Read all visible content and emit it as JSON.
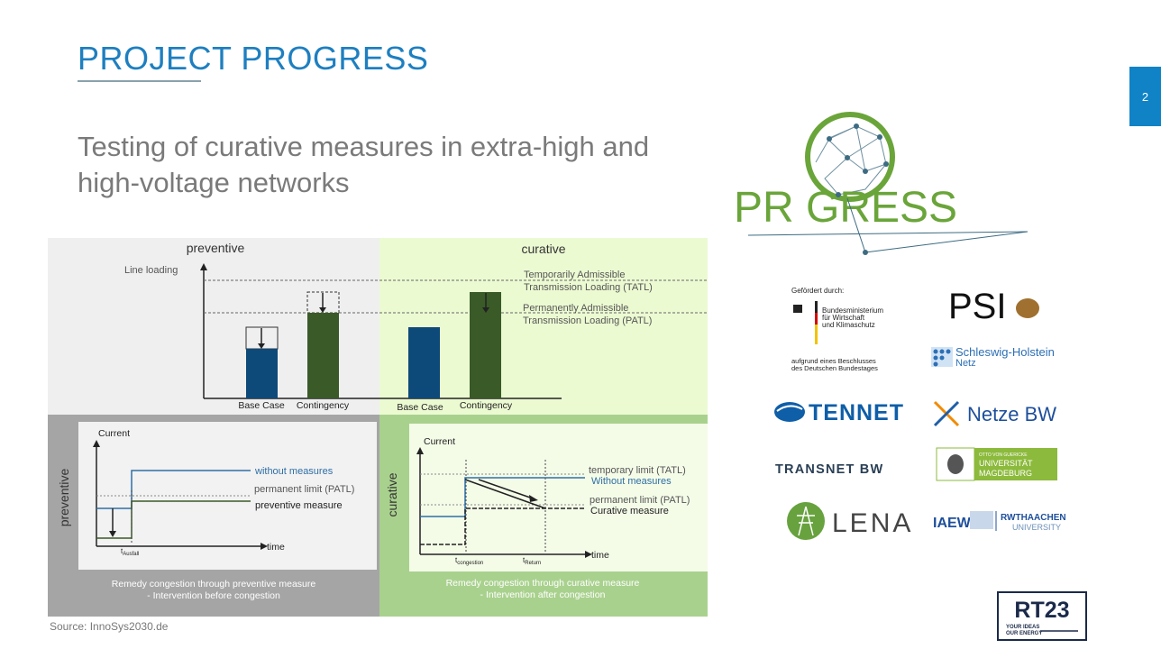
{
  "header": {
    "title": "PROJECT PROGRESS",
    "page_number": "2"
  },
  "subtitle": "Testing of curative measures in extra-high and high-voltage networks",
  "figure": {
    "top": {
      "preventive_label": "preventive",
      "curative_label": "curative",
      "y_axis_label": "Line loading",
      "tatl_line1": "Temporarily Admissible",
      "tatl_line2": "Transmission Loading (TATL)",
      "patl_line1": "Permanently Admissible",
      "patl_line2": "Transmission Loading (PATL)",
      "bar_labels": [
        "Base Case",
        "Contingency",
        "Base Case",
        "Contingency"
      ]
    },
    "bottom_left": {
      "side_label": "preventive",
      "y_label": "Current",
      "x_label": "time",
      "t_symbol": "t",
      "t_sub": "Ausfall",
      "legend": [
        "without measures",
        "permanent limit (PATL)",
        "preventive measure"
      ],
      "caption1": "Remedy congestion through preventive measure",
      "caption2": "- Intervention before congestion"
    },
    "bottom_right": {
      "side_label": "curative",
      "y_label": "Current",
      "x_label": "time",
      "t_symbol": "t",
      "t1_sub": "congestion",
      "t2_sub": "Return",
      "legend": [
        "temporary limit (TATL)",
        "Without measures",
        "permanent limit (PATL)",
        "Curative measure"
      ],
      "caption1": "Remedy congestion through curative measure",
      "caption2": "- Intervention after congestion"
    }
  },
  "source": "Source: InnoSys2030.de",
  "logos": {
    "progress": "PR GRESS",
    "gefoerdert": "Gefördert durch:",
    "bmwk": [
      "Bundesministerium",
      "für Wirtschaft",
      "und Klimaschutz"
    ],
    "beschluss": [
      "aufgrund eines Beschlusses",
      "des Deutschen Bundestages"
    ],
    "psi": "PSI",
    "sh_netz": [
      "Schleswig-Holstein",
      "Netz"
    ],
    "tennet": "TENNET",
    "netze_bw": "Netze BW",
    "transnet": "TRANSNET BW",
    "magdeburg": [
      "OTTO VON GUERICKE",
      "UNIVERSITÄT",
      "MAGDEBURG"
    ],
    "lena": "LENA",
    "iaew": "IAEW",
    "rwth": [
      "RWTHAACHEN",
      "UNIVERSITY"
    ],
    "rt23": "RT23",
    "rt23_tag": [
      "YOUR IDEAS",
      "OUR ENERGY"
    ]
  },
  "colors": {
    "accent": "#1e7fc0",
    "bar_blue": "#0d4a7a",
    "bar_green": "#3a5a28",
    "progress_green": "#6aa53a"
  }
}
